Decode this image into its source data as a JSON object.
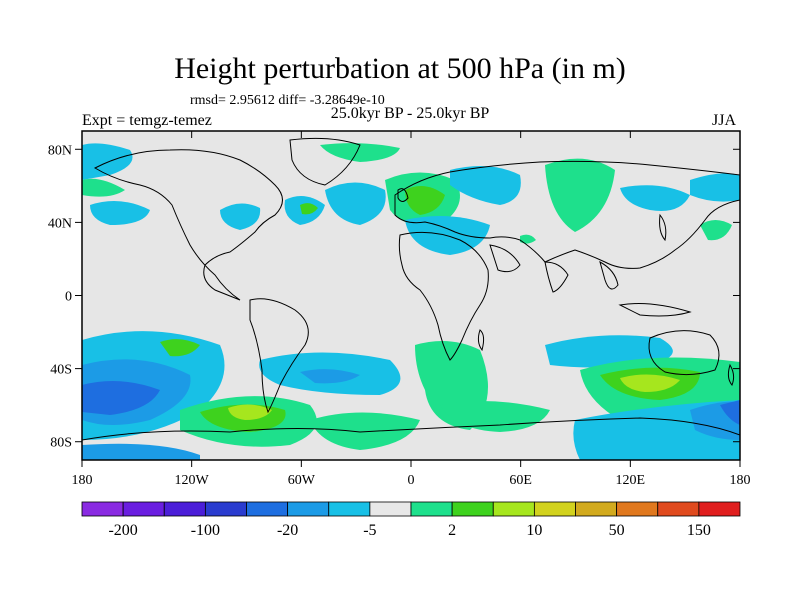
{
  "header": {
    "title": "Height perturbation at 500 hPa (in m)",
    "stats": "rmsd= 2.95612 diff= -3.28649e-10",
    "subtitle": "25.0kyr BP - 25.0kyr BP",
    "experiment": "Expt = temgz-temez",
    "season": "JJA"
  },
  "map": {
    "lon_range": [
      -180,
      180
    ],
    "lat_range": [
      -90,
      90
    ],
    "lat_ticks": [
      {
        "value": 80,
        "label": "80N"
      },
      {
        "value": 40,
        "label": "40N"
      },
      {
        "value": 0,
        "label": "0"
      },
      {
        "value": -40,
        "label": "40S"
      },
      {
        "value": -80,
        "label": "80S"
      }
    ],
    "lon_ticks": [
      {
        "value": -180,
        "label": "180"
      },
      {
        "value": -120,
        "label": "120W"
      },
      {
        "value": -60,
        "label": "60W"
      },
      {
        "value": 0,
        "label": "0"
      },
      {
        "value": 60,
        "label": "60E"
      },
      {
        "value": 120,
        "label": "120E"
      },
      {
        "value": 180,
        "label": "180"
      }
    ],
    "background_color": "#e6e6e6"
  },
  "colorbar": {
    "colors": [
      "#8a2be2",
      "#6a1ee0",
      "#4b1ed8",
      "#2a3ccf",
      "#1e6ee0",
      "#1c9be6",
      "#18c0e6",
      "#e8e8e8",
      "#1ee08c",
      "#3ed21e",
      "#a6e61e",
      "#d2d21e",
      "#d2aa1e",
      "#e0781e",
      "#e04a1e",
      "#e01e1e"
    ],
    "labels": [
      "-200",
      "-100",
      "-20",
      "-5",
      "2",
      "10",
      "50",
      "150"
    ]
  }
}
